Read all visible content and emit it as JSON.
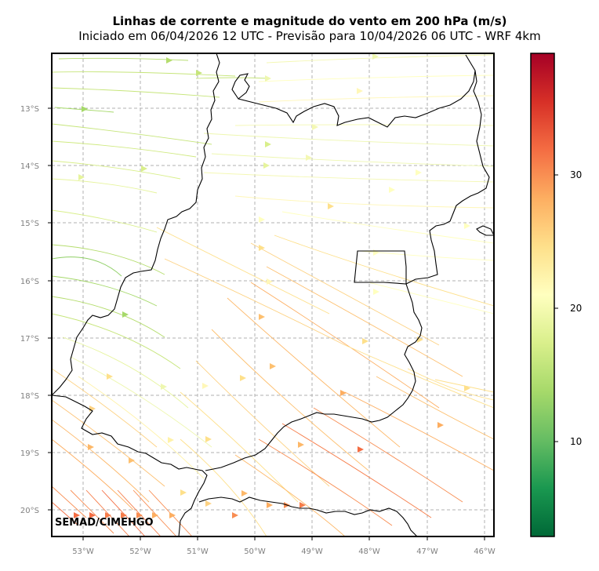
{
  "title": "Linhas de corrente e magnitude do vento em 200 hPa (m/s)",
  "subtitle": "Iniciado em 06/04/2026 12 UTC - Previsão para 10/04/2026 06 UTC - WRF 4km",
  "credit": "SEMAD/CIMEHGO",
  "lon_labels": [
    "53°W",
    "52°W",
    "51°W",
    "50°W",
    "49°W",
    "48°W",
    "47°W",
    "46°W"
  ],
  "lat_labels": [
    "13°S",
    "14°S",
    "15°S",
    "16°S",
    "17°S",
    "18°S",
    "19°S",
    "20°S"
  ],
  "colorbar": {
    "ticks": [
      "10",
      "20",
      "30"
    ],
    "colors": [
      "#006837",
      "#1a9850",
      "#66bd63",
      "#a6d96a",
      "#d9ef8b",
      "#ffffbf",
      "#fee08b",
      "#fdae61",
      "#f46d43",
      "#d73027",
      "#a50026"
    ]
  }
}
